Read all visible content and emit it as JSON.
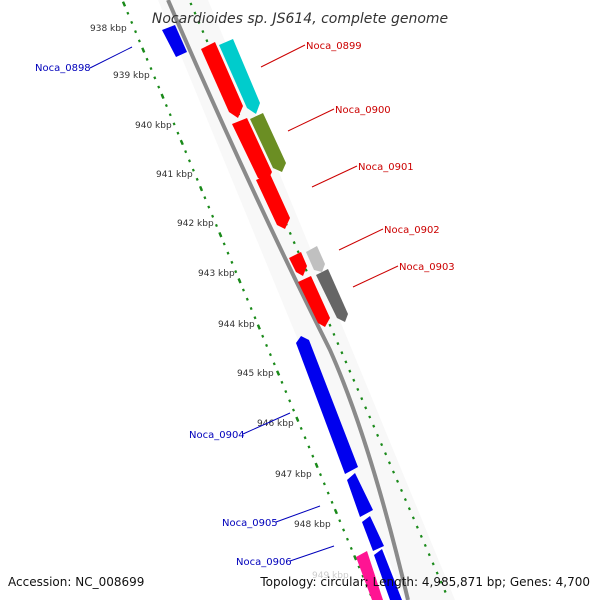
{
  "title": "Nocardioides sp. JS614, complete genome",
  "footer": {
    "accession": "Accession: NC_008699",
    "topology": "Topology: circular; Length: 4,985,871 bp; Genes: 4,700"
  },
  "colors": {
    "forward_label": "#cc0000",
    "reverse_label": "#0000bb",
    "backbone": "#888888",
    "tick": "#1a8a1a",
    "red": "#ff0000",
    "blue": "#0000ee",
    "cyan": "#00cccc",
    "olive": "#6b8e23",
    "light_gray": "#c0c0c0",
    "dark_gray": "#666666",
    "pink": "#ff1493"
  },
  "tick_labels": [
    "938 kbp",
    "939 kbp",
    "940 kbp",
    "941 kbp",
    "942 kbp",
    "943 kbp",
    "944 kbp",
    "945 kbp",
    "946 kbp",
    "947 kbp",
    "948 kbp",
    "949 kbp"
  ],
  "gene_labels": {
    "noca_0898": "Noca_0898",
    "noca_0899": "Noca_0899",
    "noca_0900": "Noca_0900",
    "noca_0901": "Noca_0901",
    "noca_0902": "Noca_0902",
    "noca_0903": "Noca_0903",
    "noca_0904": "Noca_0904",
    "noca_0905": "Noca_0905",
    "noca_0906": "Noca_0906"
  }
}
